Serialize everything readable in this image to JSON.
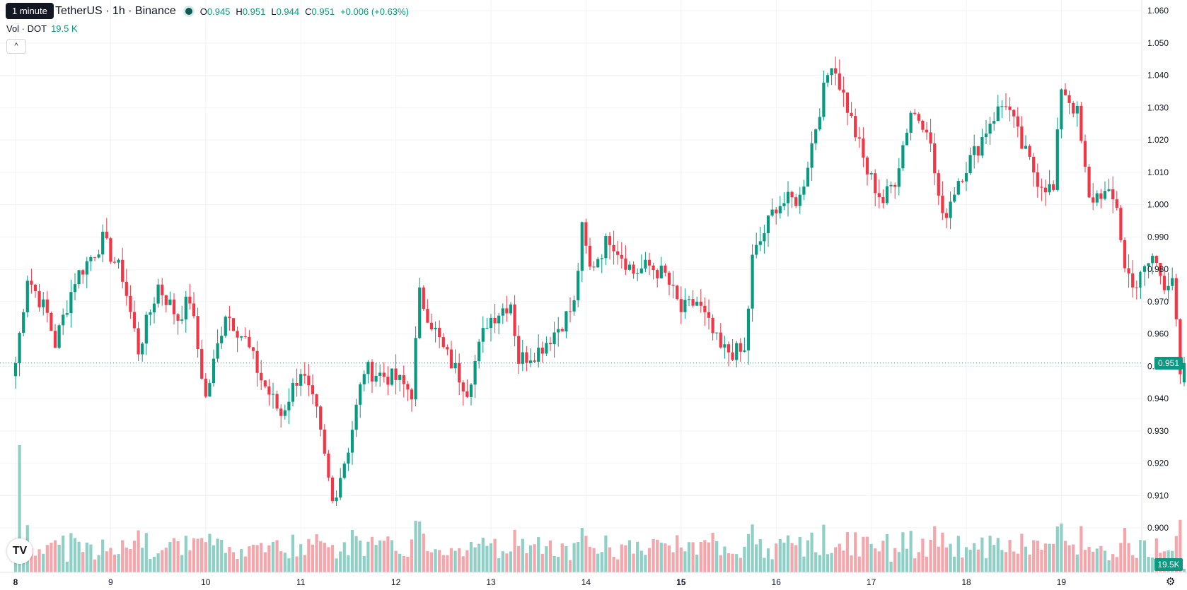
{
  "header": {
    "symbol": "TetherUS · 1h · Binance",
    "tooltip": "1 minute",
    "ohlc": {
      "o_label": "O",
      "o": "0.945",
      "h_label": "H",
      "h": "0.951",
      "l_label": "L",
      "l": "0.944",
      "c_label": "C",
      "c": "0.951",
      "change": "+0.006 (+0.63%)"
    },
    "volume_label": "Vol · DOT",
    "volume_value": "19.5 K"
  },
  "price_tag": "0.951",
  "volume_tag": "19.5K",
  "logo_text": "TV",
  "icons": {
    "collapse": "chevron-up-icon",
    "settings": "gear-icon",
    "logo": "tradingview-logo-icon"
  },
  "colors": {
    "up": "#089981",
    "down": "#f23645",
    "up_volume": "#8ed0c6",
    "down_volume": "#f5a6ab",
    "grid": "#f0f3fa"
  },
  "chart_data": {
    "type": "candlestick",
    "interval": "1h",
    "x_ticks": [
      "8",
      "9",
      "10",
      "11",
      "12",
      "13",
      "14",
      "15",
      "16",
      "17",
      "18",
      "19"
    ],
    "bold_ticks": [
      "8",
      "15"
    ],
    "y_ticks": [
      "1.060",
      "1.050",
      "1.040",
      "1.030",
      "1.020",
      "1.010",
      "1.000",
      "0.990",
      "0.980",
      "0.970",
      "0.960",
      "0.950",
      "0.940",
      "0.930",
      "0.920",
      "0.910",
      "0.900"
    ],
    "ylim": [
      0.895,
      1.062
    ],
    "last_price": 0.951,
    "volume_last": "19.5K",
    "grid": true,
    "keypoints": [
      {
        "t": 0,
        "p": 0.951
      },
      {
        "t": 3,
        "p": 0.978
      },
      {
        "t": 8,
        "p": 0.966
      },
      {
        "t": 10,
        "p": 0.957
      },
      {
        "t": 15,
        "p": 0.977
      },
      {
        "t": 22,
        "p": 0.989
      },
      {
        "t": 27,
        "p": 0.978
      },
      {
        "t": 31,
        "p": 0.955
      },
      {
        "t": 36,
        "p": 0.975
      },
      {
        "t": 41,
        "p": 0.965
      },
      {
        "t": 44,
        "p": 0.971
      },
      {
        "t": 48,
        "p": 0.94
      },
      {
        "t": 53,
        "p": 0.967
      },
      {
        "t": 58,
        "p": 0.958
      },
      {
        "t": 62,
        "p": 0.946
      },
      {
        "t": 67,
        "p": 0.935
      },
      {
        "t": 72,
        "p": 0.949
      },
      {
        "t": 76,
        "p": 0.935
      },
      {
        "t": 80,
        "p": 0.908
      },
      {
        "t": 84,
        "p": 0.925
      },
      {
        "t": 88,
        "p": 0.949
      },
      {
        "t": 96,
        "p": 0.946
      },
      {
        "t": 100,
        "p": 0.942
      },
      {
        "t": 102,
        "p": 0.972
      },
      {
        "t": 108,
        "p": 0.955
      },
      {
        "t": 114,
        "p": 0.943
      },
      {
        "t": 119,
        "p": 0.964
      },
      {
        "t": 125,
        "p": 0.97
      },
      {
        "t": 127,
        "p": 0.952
      },
      {
        "t": 132,
        "p": 0.955
      },
      {
        "t": 137,
        "p": 0.962
      },
      {
        "t": 141,
        "p": 0.969
      },
      {
        "t": 143,
        "p": 0.992
      },
      {
        "t": 145,
        "p": 0.98
      },
      {
        "t": 150,
        "p": 0.99
      },
      {
        "t": 156,
        "p": 0.979
      },
      {
        "t": 160,
        "p": 0.981
      },
      {
        "t": 164,
        "p": 0.978
      },
      {
        "t": 168,
        "p": 0.967
      },
      {
        "t": 172,
        "p": 0.97
      },
      {
        "t": 178,
        "p": 0.955
      },
      {
        "t": 184,
        "p": 0.954
      },
      {
        "t": 186,
        "p": 0.983
      },
      {
        "t": 192,
        "p": 1.0
      },
      {
        "t": 198,
        "p": 1.002
      },
      {
        "t": 203,
        "p": 1.03
      },
      {
        "t": 206,
        "p": 1.045
      },
      {
        "t": 210,
        "p": 1.03
      },
      {
        "t": 215,
        "p": 1.01
      },
      {
        "t": 219,
        "p": 1.001
      },
      {
        "t": 222,
        "p": 1.008
      },
      {
        "t": 226,
        "p": 1.029
      },
      {
        "t": 230,
        "p": 1.025
      },
      {
        "t": 234,
        "p": 0.995
      },
      {
        "t": 238,
        "p": 1.008
      },
      {
        "t": 243,
        "p": 1.018
      },
      {
        "t": 246,
        "p": 1.026
      },
      {
        "t": 250,
        "p": 1.032
      },
      {
        "t": 254,
        "p": 1.018
      },
      {
        "t": 258,
        "p": 1.008
      },
      {
        "t": 262,
        "p": 1.004
      },
      {
        "t": 264,
        "p": 1.037
      },
      {
        "t": 268,
        "p": 1.028
      },
      {
        "t": 271,
        "p": 1.001
      },
      {
        "t": 274,
        "p": 1.004
      },
      {
        "t": 278,
        "p": 1.0
      },
      {
        "t": 280,
        "p": 0.98
      },
      {
        "t": 283,
        "p": 0.975
      },
      {
        "t": 287,
        "p": 0.984
      },
      {
        "t": 290,
        "p": 0.976
      },
      {
        "t": 292,
        "p": 0.978
      },
      {
        "t": 294,
        "p": 0.946
      },
      {
        "t": 295,
        "p": 0.951
      }
    ]
  }
}
